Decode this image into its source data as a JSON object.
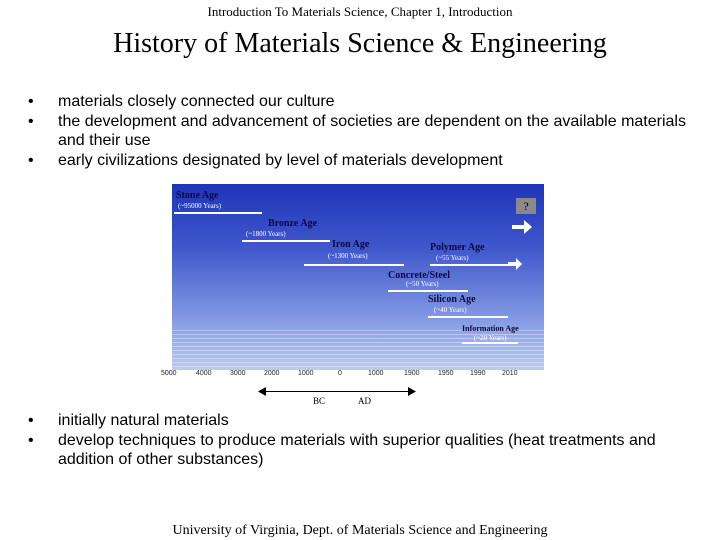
{
  "header": "Introduction To Materials Science, Chapter 1, Introduction",
  "title": "History of Materials Science & Engineering",
  "top_bullets": [
    "materials closely connected our culture",
    "the development and advancement of societies are dependent on the available materials and their use",
    "early civilizations designated by level of materials development"
  ],
  "bullet_glyph": "•",
  "figure": {
    "ages": [
      {
        "name": "Stone Age",
        "years": "(~95000 Years)"
      },
      {
        "name": "Bronze Age",
        "years": "(~1800 Years)"
      },
      {
        "name": "Iron Age",
        "years": "(~1300 Years)"
      },
      {
        "name": "Polymer Age",
        "years": "(~55 Years)"
      },
      {
        "name": "Concrete/Steel",
        "years": "(~50 Years)"
      },
      {
        "name": "Silicon Age",
        "years": "(~40 Years)"
      },
      {
        "name": "Information Age",
        "years": "(~20 Years)"
      }
    ],
    "question": "?",
    "ticks": [
      "5000",
      "4000",
      "3000",
      "2000",
      "1000",
      "0",
      "1000",
      "1900",
      "1950",
      "1990",
      "2010"
    ],
    "bc": "BC",
    "ad": "AD",
    "colors": {
      "bar": "#ffffff",
      "label": "#0a0a40",
      "arrow": "#ffffff"
    }
  },
  "bottom_bullets": [
    "initially natural materials",
    "develop techniques to produce materials with superior qualities (heat treatments and addition of other substances)"
  ],
  "footer": "University of Virginia, Dept. of Materials Science and Engineering"
}
